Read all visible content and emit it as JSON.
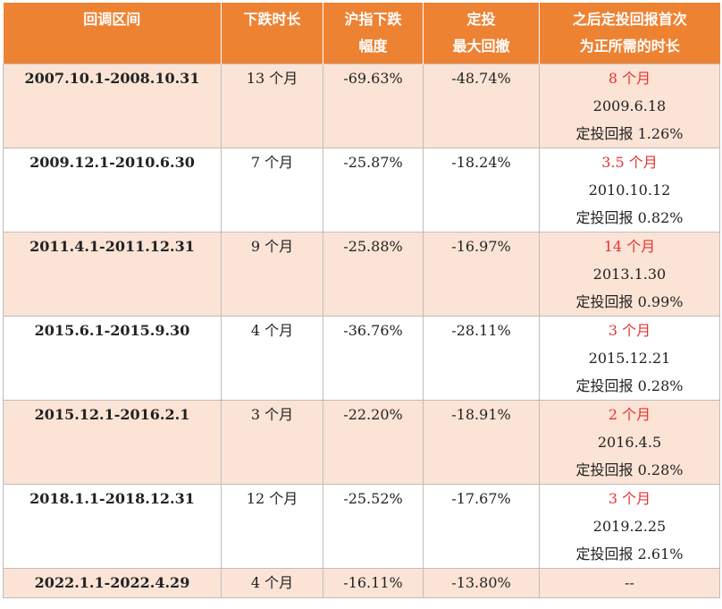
{
  "headers": {
    "range": "回调区间",
    "duration": "下跌时长",
    "drop_line1": "沪指下跌",
    "drop_line2": "幅度",
    "dd_line1": "定投",
    "dd_line2": "最大回撤",
    "recover_line1": "之后定投回报首次",
    "recover_line2": "为正所需的时长"
  },
  "rows": [
    {
      "range": "2007.10.1-2008.10.31",
      "duration": "13 个月",
      "drop": "-69.63%",
      "max_drawdown": "-48.74%",
      "recover_time": "8 个月",
      "recover_date": "2009.6.18",
      "recover_return": "定投回报 1.26%"
    },
    {
      "range": "2009.12.1-2010.6.30",
      "duration": "7 个月",
      "drop": "-25.87%",
      "max_drawdown": "-18.24%",
      "recover_time": "3.5 个月",
      "recover_date": "2010.10.12",
      "recover_return": "定投回报 0.82%"
    },
    {
      "range": "2011.4.1-2011.12.31",
      "duration": "9 个月",
      "drop": "-25.88%",
      "max_drawdown": "-16.97%",
      "recover_time": "14 个月",
      "recover_date": "2013.1.30",
      "recover_return": "定投回报 0.99%"
    },
    {
      "range": "2015.6.1-2015.9.30",
      "duration": "4 个月",
      "drop": "-36.76%",
      "max_drawdown": "-28.11%",
      "recover_time": "3 个月",
      "recover_date": "2015.12.21",
      "recover_return": "定投回报 0.28%"
    },
    {
      "range": "2015.12.1-2016.2.1",
      "duration": "3 个月",
      "drop": "-22.20%",
      "max_drawdown": "-18.91%",
      "recover_time": "2 个月",
      "recover_date": "2016.4.5",
      "recover_return": "定投回报 0.28%"
    },
    {
      "range": "2018.1.1-2018.12.31",
      "duration": "12 个月",
      "drop": "-25.52%",
      "max_drawdown": "-17.67%",
      "recover_time": "3 个月",
      "recover_date": "2019.2.25",
      "recover_return": "定投回报 2.61%"
    },
    {
      "range": "2022.1.1-2022.4.29",
      "duration": "4 个月",
      "drop": "-16.11%",
      "max_drawdown": "-13.80%",
      "recover_text": "--"
    }
  ],
  "colors": {
    "header_bg": "#ee8233",
    "band_bg": "#fbe3d5",
    "highlight_text": "#e53232"
  }
}
